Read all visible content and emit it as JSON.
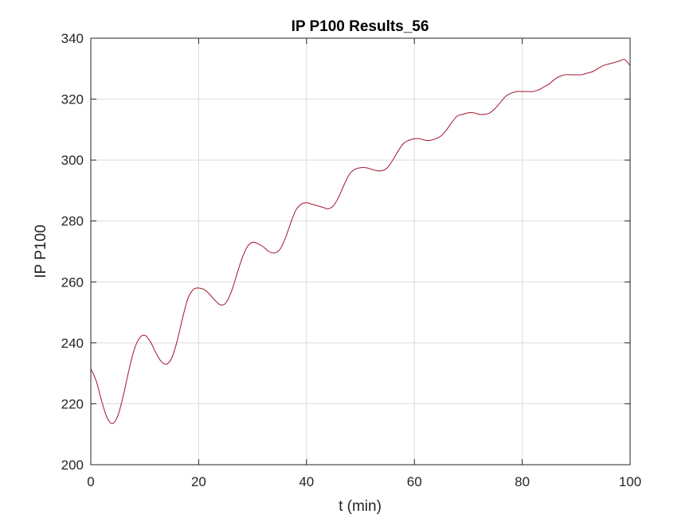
{
  "chart_data": {
    "type": "line",
    "title": "IP P100 Results_56",
    "xlabel": "t (min)",
    "ylabel": "IP P100",
    "xlim": [
      0,
      100
    ],
    "ylim": [
      200,
      340
    ],
    "xticks": [
      0,
      20,
      40,
      60,
      80,
      100
    ],
    "yticks": [
      200,
      220,
      240,
      260,
      280,
      300,
      320,
      340
    ],
    "grid": true,
    "series": [
      {
        "color": "#a2142f",
        "x": [
          0,
          1,
          2,
          3,
          4,
          5,
          6,
          7,
          8,
          9,
          10,
          11,
          12,
          13,
          14,
          15,
          16,
          17,
          18,
          19,
          20,
          21,
          22,
          23,
          24,
          25,
          26,
          27,
          28,
          29,
          30,
          31,
          32,
          33,
          34,
          35,
          36,
          37,
          38,
          39,
          40,
          41,
          42,
          43,
          44,
          45,
          46,
          47,
          48,
          49,
          50,
          51,
          52,
          53,
          54,
          55,
          56,
          57,
          58,
          59,
          60,
          61,
          62,
          63,
          64,
          65,
          66,
          67,
          68,
          69,
          70,
          71,
          72,
          73,
          74,
          75,
          76,
          77,
          78,
          79,
          80,
          81,
          82,
          83,
          84,
          85,
          86,
          87,
          88,
          89,
          90,
          91,
          92,
          93,
          94,
          95,
          96,
          97,
          98,
          99,
          100
        ],
        "y": [
          231.5,
          227.5,
          221.0,
          215.5,
          213.5,
          216.0,
          222.5,
          230.5,
          237.5,
          241.5,
          242.5,
          240.5,
          237.0,
          234.0,
          233.0,
          235.0,
          240.5,
          248.0,
          254.5,
          257.5,
          258.0,
          257.5,
          256.0,
          254.0,
          252.5,
          253.0,
          256.5,
          262.0,
          267.5,
          271.5,
          273.0,
          272.5,
          271.5,
          270.0,
          269.5,
          270.5,
          274.0,
          279.0,
          283.5,
          285.5,
          286.0,
          285.5,
          285.0,
          284.5,
          284.0,
          285.0,
          288.0,
          292.0,
          295.5,
          297.0,
          297.5,
          297.5,
          297.0,
          296.5,
          296.5,
          297.5,
          300.0,
          303.0,
          305.5,
          306.5,
          307.0,
          307.0,
          306.5,
          306.5,
          307.0,
          308.0,
          310.0,
          312.5,
          314.5,
          315.0,
          315.5,
          315.5,
          315.0,
          315.0,
          315.5,
          317.0,
          319.0,
          321.0,
          322.0,
          322.5,
          322.5,
          322.5,
          322.5,
          323.0,
          324.0,
          325.0,
          326.5,
          327.5,
          328.0,
          328.0,
          328.0,
          328.0,
          328.5,
          329.0,
          330.0,
          331.0,
          331.5,
          332.0,
          332.5,
          333.0,
          331.0
        ]
      }
    ]
  }
}
